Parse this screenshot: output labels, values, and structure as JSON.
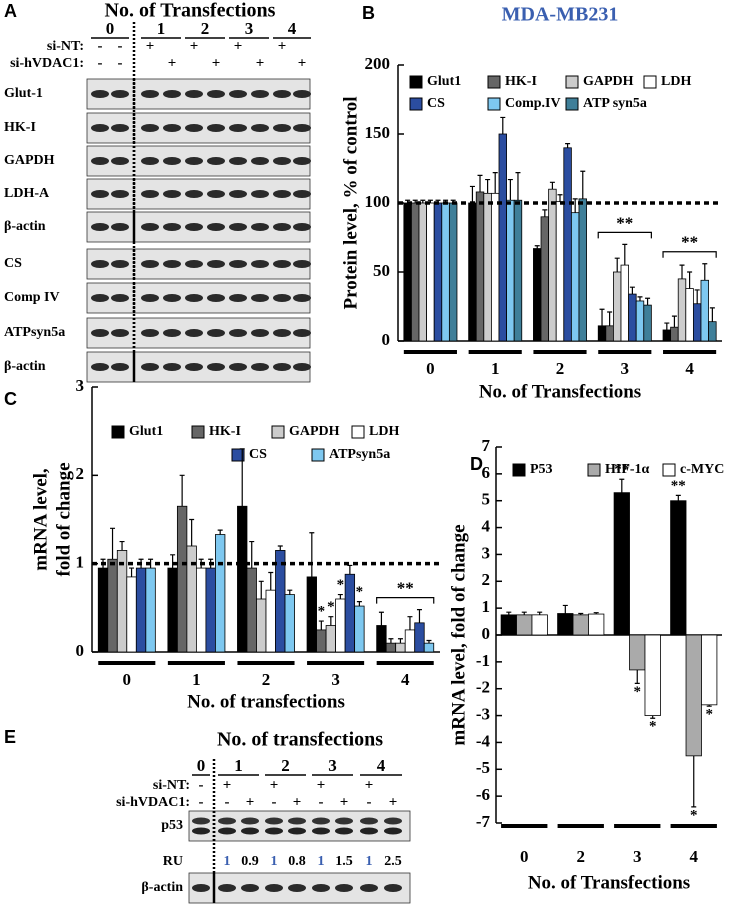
{
  "panel_labels": [
    "A",
    "B",
    "C",
    "D",
    "E"
  ],
  "blot_a": {
    "title": "No. of Transfections",
    "groups": [
      "0",
      "1",
      "2",
      "3",
      "4"
    ],
    "treatments": [
      {
        "name": "si-NT:",
        "marks": [
          "-",
          "-",
          "+",
          null,
          "+",
          null,
          "+",
          null,
          "+",
          null
        ]
      },
      {
        "name": "si-hVDAC1:",
        "marks": [
          "-",
          "-",
          null,
          "+",
          null,
          "+",
          null,
          "+",
          null,
          "+"
        ]
      }
    ],
    "rows": [
      "Glut-1",
      "HK-I",
      "GAPDH",
      "LDH-A",
      "β-actin",
      "CS",
      "Comp IV",
      "ATPsyn5a",
      "β-actin"
    ]
  },
  "blot_e": {
    "title": "No. of transfections",
    "groups": [
      "0",
      "1",
      "2",
      "3",
      "4"
    ],
    "treatments": [
      {
        "name": "si-NT:",
        "marks": [
          "-",
          "+",
          null,
          "+",
          null,
          "+",
          null,
          "+",
          null
        ]
      },
      {
        "name": "si-hVDAC1:",
        "marks": [
          "-",
          "-",
          "+",
          "-",
          "+",
          "-",
          "+",
          "-",
          "+"
        ]
      }
    ],
    "rows": [
      "p53",
      "β-actin"
    ],
    "ru_label": "RU",
    "ru_values": [
      1,
      0.9,
      1,
      0.8,
      1,
      1.5,
      1,
      2.5
    ]
  },
  "chart_data": [
    {
      "type": "bar",
      "title": "MDA-MB231",
      "title_color": "#3a5fb0",
      "y_label": "Protein level, % of control",
      "x_label": "No. of Transfections",
      "categories": [
        "0",
        "1",
        "2",
        "3",
        "4"
      ],
      "ylim": [
        0,
        200
      ],
      "yticks": [
        0,
        50,
        100,
        150,
        200
      ],
      "reference_line": 100,
      "group_labels": [
        null,
        null,
        null,
        "**",
        "**"
      ],
      "series": [
        {
          "name": "Glut1",
          "color": "#000000",
          "values": [
            100,
            100,
            67,
            11,
            8
          ],
          "errors": [
            2,
            12,
            2,
            12,
            5
          ]
        },
        {
          "name": "HK-I",
          "color": "#666666",
          "values": [
            100,
            108,
            90,
            11,
            10
          ],
          "errors": [
            2,
            12,
            5,
            10,
            8
          ]
        },
        {
          "name": "GAPDH",
          "color": "#cccccc",
          "values": [
            100,
            107,
            110,
            50,
            45
          ],
          "errors": [
            2,
            10,
            5,
            10,
            10
          ]
        },
        {
          "name": "LDH",
          "color": "#ffffff",
          "values": [
            100,
            107,
            101,
            55,
            38
          ],
          "errors": [
            2,
            15,
            5,
            15,
            12
          ]
        },
        {
          "name": "CS",
          "color": "#2b4da0",
          "values": [
            100,
            150,
            140,
            34,
            27
          ],
          "errors": [
            2,
            12,
            3,
            5,
            10
          ]
        },
        {
          "name": "Comp.IV",
          "color": "#7ec8f0",
          "values": [
            100,
            102,
            93,
            29,
            44
          ],
          "errors": [
            2,
            15,
            10,
            3,
            12
          ]
        },
        {
          "name": "ATP syn5a",
          "color": "#3f7f99",
          "values": [
            100,
            102,
            103,
            26,
            14
          ],
          "errors": [
            2,
            20,
            20,
            5,
            10
          ]
        }
      ]
    },
    {
      "type": "bar",
      "y_label": [
        "mRNA level,",
        "fold of change"
      ],
      "x_label": "No. of transfections",
      "categories": [
        "0",
        "1",
        "2",
        "3",
        "4"
      ],
      "ylim": [
        0,
        3
      ],
      "yticks": [
        0,
        1,
        2,
        3
      ],
      "reference_line": 1,
      "group_labels": [
        null,
        null,
        null,
        null,
        "**"
      ],
      "series": [
        {
          "name": "Glut1",
          "color": "#000000",
          "values": [
            0.95,
            0.95,
            1.65,
            0.85,
            0.3
          ],
          "errors": [
            0.1,
            0.15,
            0.65,
            0.5,
            0.15
          ],
          "labels": [
            null,
            null,
            null,
            null,
            null
          ]
        },
        {
          "name": "HK-I",
          "color": "#666666",
          "values": [
            1.05,
            1.65,
            0.95,
            0.25,
            0.1
          ],
          "errors": [
            0.35,
            0.35,
            0.3,
            0.1,
            0.05
          ],
          "labels": [
            null,
            null,
            null,
            "*",
            null
          ]
        },
        {
          "name": "GAPDH",
          "color": "#cccccc",
          "values": [
            1.15,
            1.2,
            0.6,
            0.3,
            0.1
          ],
          "errors": [
            0.1,
            0.3,
            0.2,
            0.1,
            0.05
          ],
          "labels": [
            null,
            null,
            null,
            "*",
            null
          ]
        },
        {
          "name": "LDH",
          "color": "#ffffff",
          "values": [
            0.85,
            0.95,
            0.7,
            0.6,
            0.25
          ],
          "errors": [
            0.1,
            0.1,
            0.2,
            0.05,
            0.15
          ],
          "labels": [
            null,
            null,
            null,
            "*",
            null
          ]
        },
        {
          "name": "CS",
          "color": "#2b4da0",
          "values": [
            0.95,
            0.95,
            1.15,
            0.88,
            0.33
          ],
          "errors": [
            0.1,
            0.1,
            0.05,
            0.1,
            0.15
          ],
          "labels": [
            null,
            null,
            null,
            null,
            null
          ]
        },
        {
          "name": "ATPsyn5a",
          "color": "#7ec8f0",
          "values": [
            0.95,
            1.33,
            0.65,
            0.52,
            0.1
          ],
          "errors": [
            0.1,
            0.05,
            0.05,
            0.05,
            0.03
          ],
          "labels": [
            null,
            null,
            null,
            "*",
            null
          ]
        }
      ]
    },
    {
      "type": "bar",
      "y_label": "mRNA level, fold of change",
      "x_label": "No. of Transfections",
      "categories": [
        "0",
        "2",
        "3",
        "4"
      ],
      "ylim": [
        -7,
        7
      ],
      "yticks": [
        -7,
        -6,
        -5,
        -4,
        -3,
        -2,
        -1,
        0,
        1,
        2,
        3,
        4,
        5,
        6,
        7
      ],
      "group_labels": [
        null,
        null,
        null,
        null
      ],
      "series": [
        {
          "name": "P53",
          "color": "#000000",
          "values": [
            0.75,
            0.8,
            5.3,
            5.0
          ],
          "errors": [
            0.1,
            0.3,
            0.5,
            0.2
          ],
          "labels": [
            null,
            null,
            "**",
            "**"
          ]
        },
        {
          "name": "HIF-1α",
          "color": "#aaaaaa",
          "values": [
            0.75,
            0.75,
            -1.3,
            -4.5
          ],
          "errors": [
            0.1,
            0.05,
            0.5,
            1.9
          ],
          "labels": [
            null,
            null,
            "*",
            "*"
          ]
        },
        {
          "name": "c-MYC",
          "color": "#ffffff",
          "values": [
            0.75,
            0.78,
            -3.0,
            -2.6
          ],
          "errors": [
            0.1,
            0.05,
            0.1,
            0.05
          ],
          "labels": [
            null,
            null,
            "*",
            "*"
          ]
        }
      ]
    }
  ]
}
